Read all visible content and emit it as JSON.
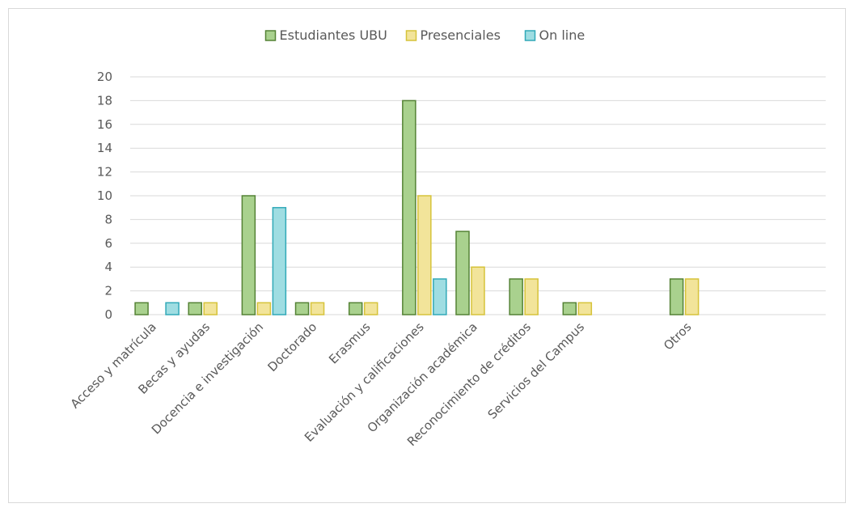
{
  "chart_data": {
    "type": "bar",
    "categories": [
      "Acceso y matrícula",
      "Becas y ayudas",
      "Docencia e investigación",
      "Doctorado",
      "Erasmus",
      "Evaluación y calificaciones",
      "Organización académica",
      "Reconocimiento de créditos",
      "Servicios del Campus",
      "",
      "Otros",
      "",
      ""
    ],
    "series": [
      {
        "name": "Estudiantes UBU",
        "values": [
          1,
          1,
          10,
          1,
          1,
          18,
          7,
          3,
          1,
          null,
          3,
          null,
          null
        ],
        "color": "#a9d18e",
        "stroke": "#548235"
      },
      {
        "name": "Presenciales",
        "values": [
          null,
          1,
          1,
          1,
          1,
          10,
          4,
          3,
          1,
          null,
          3,
          null,
          null
        ],
        "color": "#f2e49a",
        "stroke": "#d6c33a"
      },
      {
        "name": "On line",
        "values": [
          1,
          null,
          9,
          null,
          null,
          3,
          null,
          null,
          null,
          null,
          null,
          null,
          null
        ],
        "color": "#9fdde2",
        "stroke": "#31a9b8"
      }
    ],
    "y_ticks": [
      "0",
      "2",
      "4",
      "6",
      "8",
      "10",
      "12",
      "14",
      "16",
      "18",
      "20"
    ],
    "ylim": [
      0,
      20
    ],
    "grid": true,
    "legend_position": "top"
  }
}
